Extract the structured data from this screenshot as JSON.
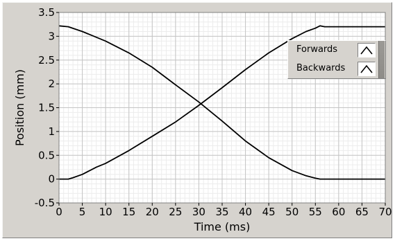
{
  "chart_data": {
    "type": "line",
    "title": "",
    "xlabel": "Time (ms)",
    "ylabel": "Position (mm)",
    "xlim": [
      0,
      70
    ],
    "ylim": [
      -0.5,
      3.5
    ],
    "xticks": [
      "0",
      "5",
      "10",
      "15",
      "20",
      "25",
      "30",
      "35",
      "40",
      "45",
      "50",
      "55",
      "60",
      "65",
      "70"
    ],
    "yticks": [
      "-0.5",
      "0",
      "0.5",
      "1",
      "1.5",
      "2",
      "2.5",
      "3",
      "3.5"
    ],
    "grid": true,
    "legend_position": "top-right",
    "series": [
      {
        "name": "Forwards",
        "color": "#000000",
        "x": [
          0,
          2,
          3,
          5,
          8,
          10,
          15,
          20,
          25,
          30,
          35,
          40,
          45,
          50,
          53,
          55,
          56,
          57,
          60,
          65,
          70
        ],
        "y": [
          0,
          0,
          0.03,
          0.1,
          0.25,
          0.33,
          0.6,
          0.9,
          1.2,
          1.55,
          1.92,
          2.3,
          2.65,
          2.95,
          3.1,
          3.17,
          3.22,
          3.2,
          3.2,
          3.2,
          3.2
        ]
      },
      {
        "name": "Backwards",
        "color": "#000000",
        "x": [
          0,
          2,
          5,
          10,
          15,
          20,
          25,
          30,
          35,
          40,
          45,
          50,
          53,
          55,
          56,
          58,
          60,
          65,
          70
        ],
        "y": [
          3.22,
          3.2,
          3.1,
          2.9,
          2.65,
          2.35,
          1.98,
          1.62,
          1.22,
          0.8,
          0.45,
          0.18,
          0.07,
          0.02,
          0,
          0,
          0,
          0,
          0
        ]
      }
    ]
  }
}
